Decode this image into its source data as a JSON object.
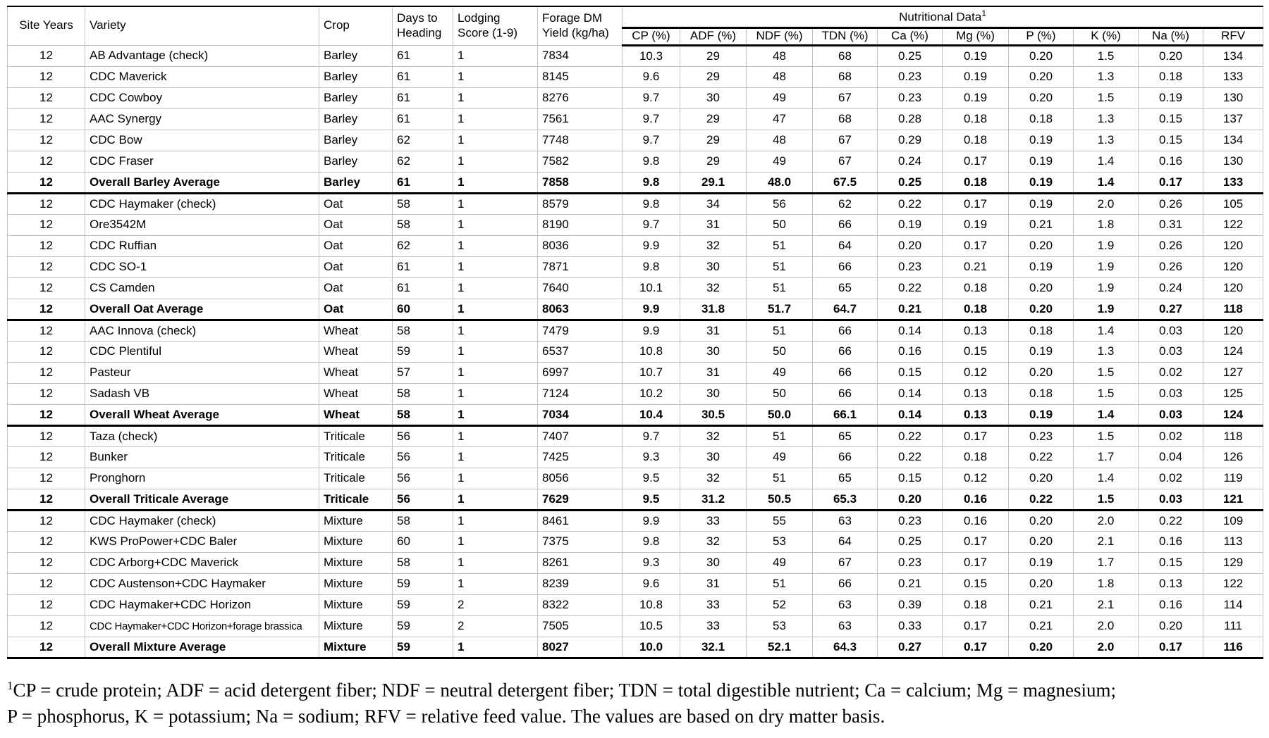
{
  "table": {
    "header": {
      "site_years": "Site Years",
      "variety": "Variety",
      "crop": "Crop",
      "days_to_heading": "Days to Heading",
      "lodging_score": "Lodging Score (1-9)",
      "forage_dm_yield": "Forage DM Yield (kg/ha)",
      "nutritional_data": "Nutritional Data",
      "nutritional_data_sup": "1",
      "nutritional_cols": [
        "CP (%)",
        "ADF (%)",
        "NDF (%)",
        "TDN (%)",
        "Ca (%)",
        "Mg (%)",
        "P (%)",
        "K (%)",
        "Na (%)",
        "RFV"
      ]
    },
    "col_keys": [
      "site-years",
      "variety",
      "crop",
      "days-to-heading",
      "lodging-score",
      "forage-dm-yield",
      "cp",
      "adf",
      "ndf",
      "tdn",
      "ca",
      "mg",
      "p",
      "k",
      "na",
      "rfv"
    ],
    "rows": [
      {
        "bold": false,
        "section_end": false,
        "cells": [
          "12",
          "AB Advantage (check)",
          "Barley",
          "61",
          "1",
          "7834",
          "10.3",
          "29",
          "48",
          "68",
          "0.25",
          "0.19",
          "0.20",
          "1.5",
          "0.20",
          "134"
        ]
      },
      {
        "bold": false,
        "section_end": false,
        "cells": [
          "12",
          "CDC Maverick",
          "Barley",
          "61",
          "1",
          "8145",
          "9.6",
          "29",
          "48",
          "68",
          "0.23",
          "0.19",
          "0.20",
          "1.3",
          "0.18",
          "133"
        ]
      },
      {
        "bold": false,
        "section_end": false,
        "cells": [
          "12",
          "CDC Cowboy",
          "Barley",
          "61",
          "1",
          "8276",
          "9.7",
          "30",
          "49",
          "67",
          "0.23",
          "0.19",
          "0.20",
          "1.5",
          "0.19",
          "130"
        ]
      },
      {
        "bold": false,
        "section_end": false,
        "cells": [
          "12",
          "AAC Synergy",
          "Barley",
          "61",
          "1",
          "7561",
          "9.7",
          "29",
          "47",
          "68",
          "0.28",
          "0.18",
          "0.18",
          "1.3",
          "0.15",
          "137"
        ]
      },
      {
        "bold": false,
        "section_end": false,
        "cells": [
          "12",
          "CDC Bow",
          "Barley",
          "62",
          "1",
          "7748",
          "9.7",
          "29",
          "48",
          "67",
          "0.29",
          "0.18",
          "0.19",
          "1.3",
          "0.15",
          "134"
        ]
      },
      {
        "bold": false,
        "section_end": false,
        "cells": [
          "12",
          "CDC Fraser",
          "Barley",
          "62",
          "1",
          "7582",
          "9.8",
          "29",
          "49",
          "67",
          "0.24",
          "0.17",
          "0.19",
          "1.4",
          "0.16",
          "130"
        ]
      },
      {
        "bold": true,
        "section_end": true,
        "cells": [
          "12",
          "Overall Barley Average",
          "Barley",
          "61",
          "1",
          "7858",
          "9.8",
          "29.1",
          "48.0",
          "67.5",
          "0.25",
          "0.18",
          "0.19",
          "1.4",
          "0.17",
          "133"
        ]
      },
      {
        "bold": false,
        "section_end": false,
        "cells": [
          "12",
          "CDC Haymaker (check)",
          "Oat",
          "58",
          "1",
          "8579",
          "9.8",
          "34",
          "56",
          "62",
          "0.22",
          "0.17",
          "0.19",
          "2.0",
          "0.26",
          "105"
        ]
      },
      {
        "bold": false,
        "section_end": false,
        "cells": [
          "12",
          "Ore3542M",
          "Oat",
          "58",
          "1",
          "8190",
          "9.7",
          "31",
          "50",
          "66",
          "0.19",
          "0.19",
          "0.21",
          "1.8",
          "0.31",
          "122"
        ]
      },
      {
        "bold": false,
        "section_end": false,
        "cells": [
          "12",
          "CDC Ruffian",
          "Oat",
          "62",
          "1",
          "8036",
          "9.9",
          "32",
          "51",
          "64",
          "0.20",
          "0.17",
          "0.20",
          "1.9",
          "0.26",
          "120"
        ]
      },
      {
        "bold": false,
        "section_end": false,
        "cells": [
          "12",
          "CDC SO-1",
          "Oat",
          "61",
          "1",
          "7871",
          "9.8",
          "30",
          "51",
          "66",
          "0.23",
          "0.21",
          "0.19",
          "1.9",
          "0.26",
          "120"
        ]
      },
      {
        "bold": false,
        "section_end": false,
        "cells": [
          "12",
          "CS Camden",
          "Oat",
          "61",
          "1",
          "7640",
          "10.1",
          "32",
          "51",
          "65",
          "0.22",
          "0.18",
          "0.20",
          "1.9",
          "0.24",
          "120"
        ]
      },
      {
        "bold": true,
        "section_end": true,
        "cells": [
          "12",
          "Overall Oat Average",
          "Oat",
          "60",
          "1",
          "8063",
          "9.9",
          "31.8",
          "51.7",
          "64.7",
          "0.21",
          "0.18",
          "0.20",
          "1.9",
          "0.27",
          "118"
        ]
      },
      {
        "bold": false,
        "section_end": false,
        "cells": [
          "12",
          "AAC Innova (check)",
          "Wheat",
          "58",
          "1",
          "7479",
          "9.9",
          "31",
          "51",
          "66",
          "0.14",
          "0.13",
          "0.18",
          "1.4",
          "0.03",
          "120"
        ]
      },
      {
        "bold": false,
        "section_end": false,
        "cells": [
          "12",
          "CDC Plentiful",
          "Wheat",
          "59",
          "1",
          "6537",
          "10.8",
          "30",
          "50",
          "66",
          "0.16",
          "0.15",
          "0.19",
          "1.3",
          "0.03",
          "124"
        ]
      },
      {
        "bold": false,
        "section_end": false,
        "cells": [
          "12",
          "Pasteur",
          "Wheat",
          "57",
          "1",
          "6997",
          "10.7",
          "31",
          "49",
          "66",
          "0.15",
          "0.12",
          "0.20",
          "1.5",
          "0.02",
          "127"
        ]
      },
      {
        "bold": false,
        "section_end": false,
        "cells": [
          "12",
          "Sadash VB",
          "Wheat",
          "58",
          "1",
          "7124",
          "10.2",
          "30",
          "50",
          "66",
          "0.14",
          "0.13",
          "0.18",
          "1.5",
          "0.03",
          "125"
        ]
      },
      {
        "bold": true,
        "section_end": true,
        "cells": [
          "12",
          "Overall Wheat Average",
          "Wheat",
          "58",
          "1",
          "7034",
          "10.4",
          "30.5",
          "50.0",
          "66.1",
          "0.14",
          "0.13",
          "0.19",
          "1.4",
          "0.03",
          "124"
        ]
      },
      {
        "bold": false,
        "section_end": false,
        "cells": [
          "12",
          "Taza (check)",
          "Triticale",
          "56",
          "1",
          "7407",
          "9.7",
          "32",
          "51",
          "65",
          "0.22",
          "0.17",
          "0.23",
          "1.5",
          "0.02",
          "118"
        ]
      },
      {
        "bold": false,
        "section_end": false,
        "cells": [
          "12",
          "Bunker",
          "Triticale",
          "56",
          "1",
          "7425",
          "9.3",
          "30",
          "49",
          "66",
          "0.22",
          "0.18",
          "0.22",
          "1.7",
          "0.04",
          "126"
        ]
      },
      {
        "bold": false,
        "section_end": false,
        "cells": [
          "12",
          "Pronghorn",
          "Triticale",
          "56",
          "1",
          "8056",
          "9.5",
          "32",
          "51",
          "65",
          "0.15",
          "0.12",
          "0.20",
          "1.4",
          "0.02",
          "119"
        ]
      },
      {
        "bold": true,
        "section_end": true,
        "cells": [
          "12",
          "Overall Triticale Average",
          "Triticale",
          "56",
          "1",
          "7629",
          "9.5",
          "31.2",
          "50.5",
          "65.3",
          "0.20",
          "0.16",
          "0.22",
          "1.5",
          "0.03",
          "121"
        ]
      },
      {
        "bold": false,
        "section_end": false,
        "cells": [
          "12",
          "CDC Haymaker (check)",
          "Mixture",
          "58",
          "1",
          "8461",
          "9.9",
          "33",
          "55",
          "63",
          "0.23",
          "0.16",
          "0.20",
          "2.0",
          "0.22",
          "109"
        ]
      },
      {
        "bold": false,
        "section_end": false,
        "cells": [
          "12",
          "KWS ProPower+CDC Baler",
          "Mixture",
          "60",
          "1",
          "7375",
          "9.8",
          "32",
          "53",
          "64",
          "0.25",
          "0.17",
          "0.20",
          "2.1",
          "0.16",
          "113"
        ]
      },
      {
        "bold": false,
        "section_end": false,
        "cells": [
          "12",
          "CDC Arborg+CDC Maverick",
          "Mixture",
          "58",
          "1",
          "8261",
          "9.3",
          "30",
          "49",
          "67",
          "0.23",
          "0.17",
          "0.19",
          "1.7",
          "0.15",
          "129"
        ]
      },
      {
        "bold": false,
        "section_end": false,
        "cells": [
          "12",
          "CDC Austenson+CDC Haymaker",
          "Mixture",
          "59",
          "1",
          "8239",
          "9.6",
          "31",
          "51",
          "66",
          "0.21",
          "0.15",
          "0.20",
          "1.8",
          "0.13",
          "122"
        ]
      },
      {
        "bold": false,
        "section_end": false,
        "cells": [
          "12",
          "CDC Haymaker+CDC Horizon",
          "Mixture",
          "59",
          "2",
          "8322",
          "10.8",
          "33",
          "52",
          "63",
          "0.39",
          "0.18",
          "0.21",
          "2.1",
          "0.16",
          "114"
        ]
      },
      {
        "bold": false,
        "section_end": false,
        "cells": [
          "12",
          "CDC Haymaker+CDC Horizon+forage brassica",
          "Mixture",
          "59",
          "2",
          "7505",
          "10.5",
          "33",
          "53",
          "63",
          "0.33",
          "0.17",
          "0.21",
          "2.0",
          "0.20",
          "111"
        ]
      },
      {
        "bold": true,
        "section_end": true,
        "cells": [
          "12",
          "Overall Mixture Average",
          "Mixture",
          "59",
          "1",
          "8027",
          "10.0",
          "32.1",
          "52.1",
          "64.3",
          "0.27",
          "0.17",
          "0.20",
          "2.0",
          "0.17",
          "116"
        ]
      }
    ]
  },
  "footnote": {
    "sup": "1",
    "line1": "CP = crude protein; ADF = acid detergent fiber; NDF = neutral detergent fiber; TDN = total digestible nutrient; Ca = calcium; Mg = magnesium;",
    "line2": "P = phosphorus, K = potassium; Na = sodium; RFV = relative feed value. The values are based on dry matter basis."
  }
}
